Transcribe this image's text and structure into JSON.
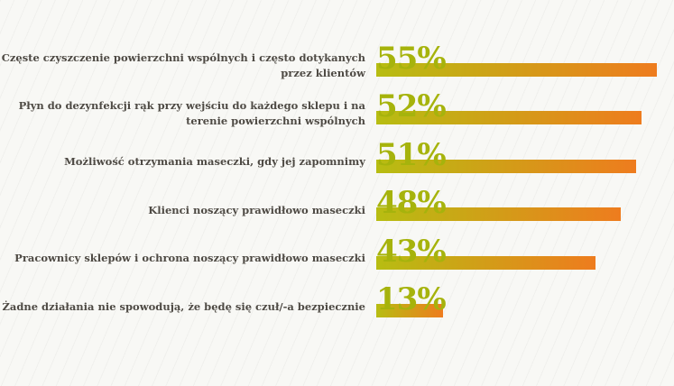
{
  "chart_data": {
    "type": "bar",
    "orientation": "horizontal",
    "title": "",
    "xlabel": "",
    "ylabel": "",
    "value_suffix": "%",
    "xlim": [
      0,
      59
    ],
    "grid": false,
    "legend": "none",
    "categories": [
      "Częste czyszczenie powierzchni wspólnych i często dotykanych przez klientów",
      "Płyn do dezynfekcji rąk przy wejściu do każdego sklepu i na terenie powierzchni wspólnych",
      "Możliwość otrzymania maseczki, gdy jej zapomnimy",
      "Klienci noszący prawidłowo maseczki",
      "Pracownicy sklepów i ochrona noszący prawidłowo maseczki",
      "Żadne działania nie spowodują, że będę się czuł/-a bezpiecznie"
    ],
    "values": [
      55,
      52,
      51,
      48,
      43,
      13
    ],
    "colors": {
      "bar_gradient_start": "#b7bd12",
      "bar_gradient_end": "#ee7c1e",
      "value_label": "#a6b30c",
      "category_label": "#4e4a44",
      "background": "#f8f8f5"
    }
  }
}
